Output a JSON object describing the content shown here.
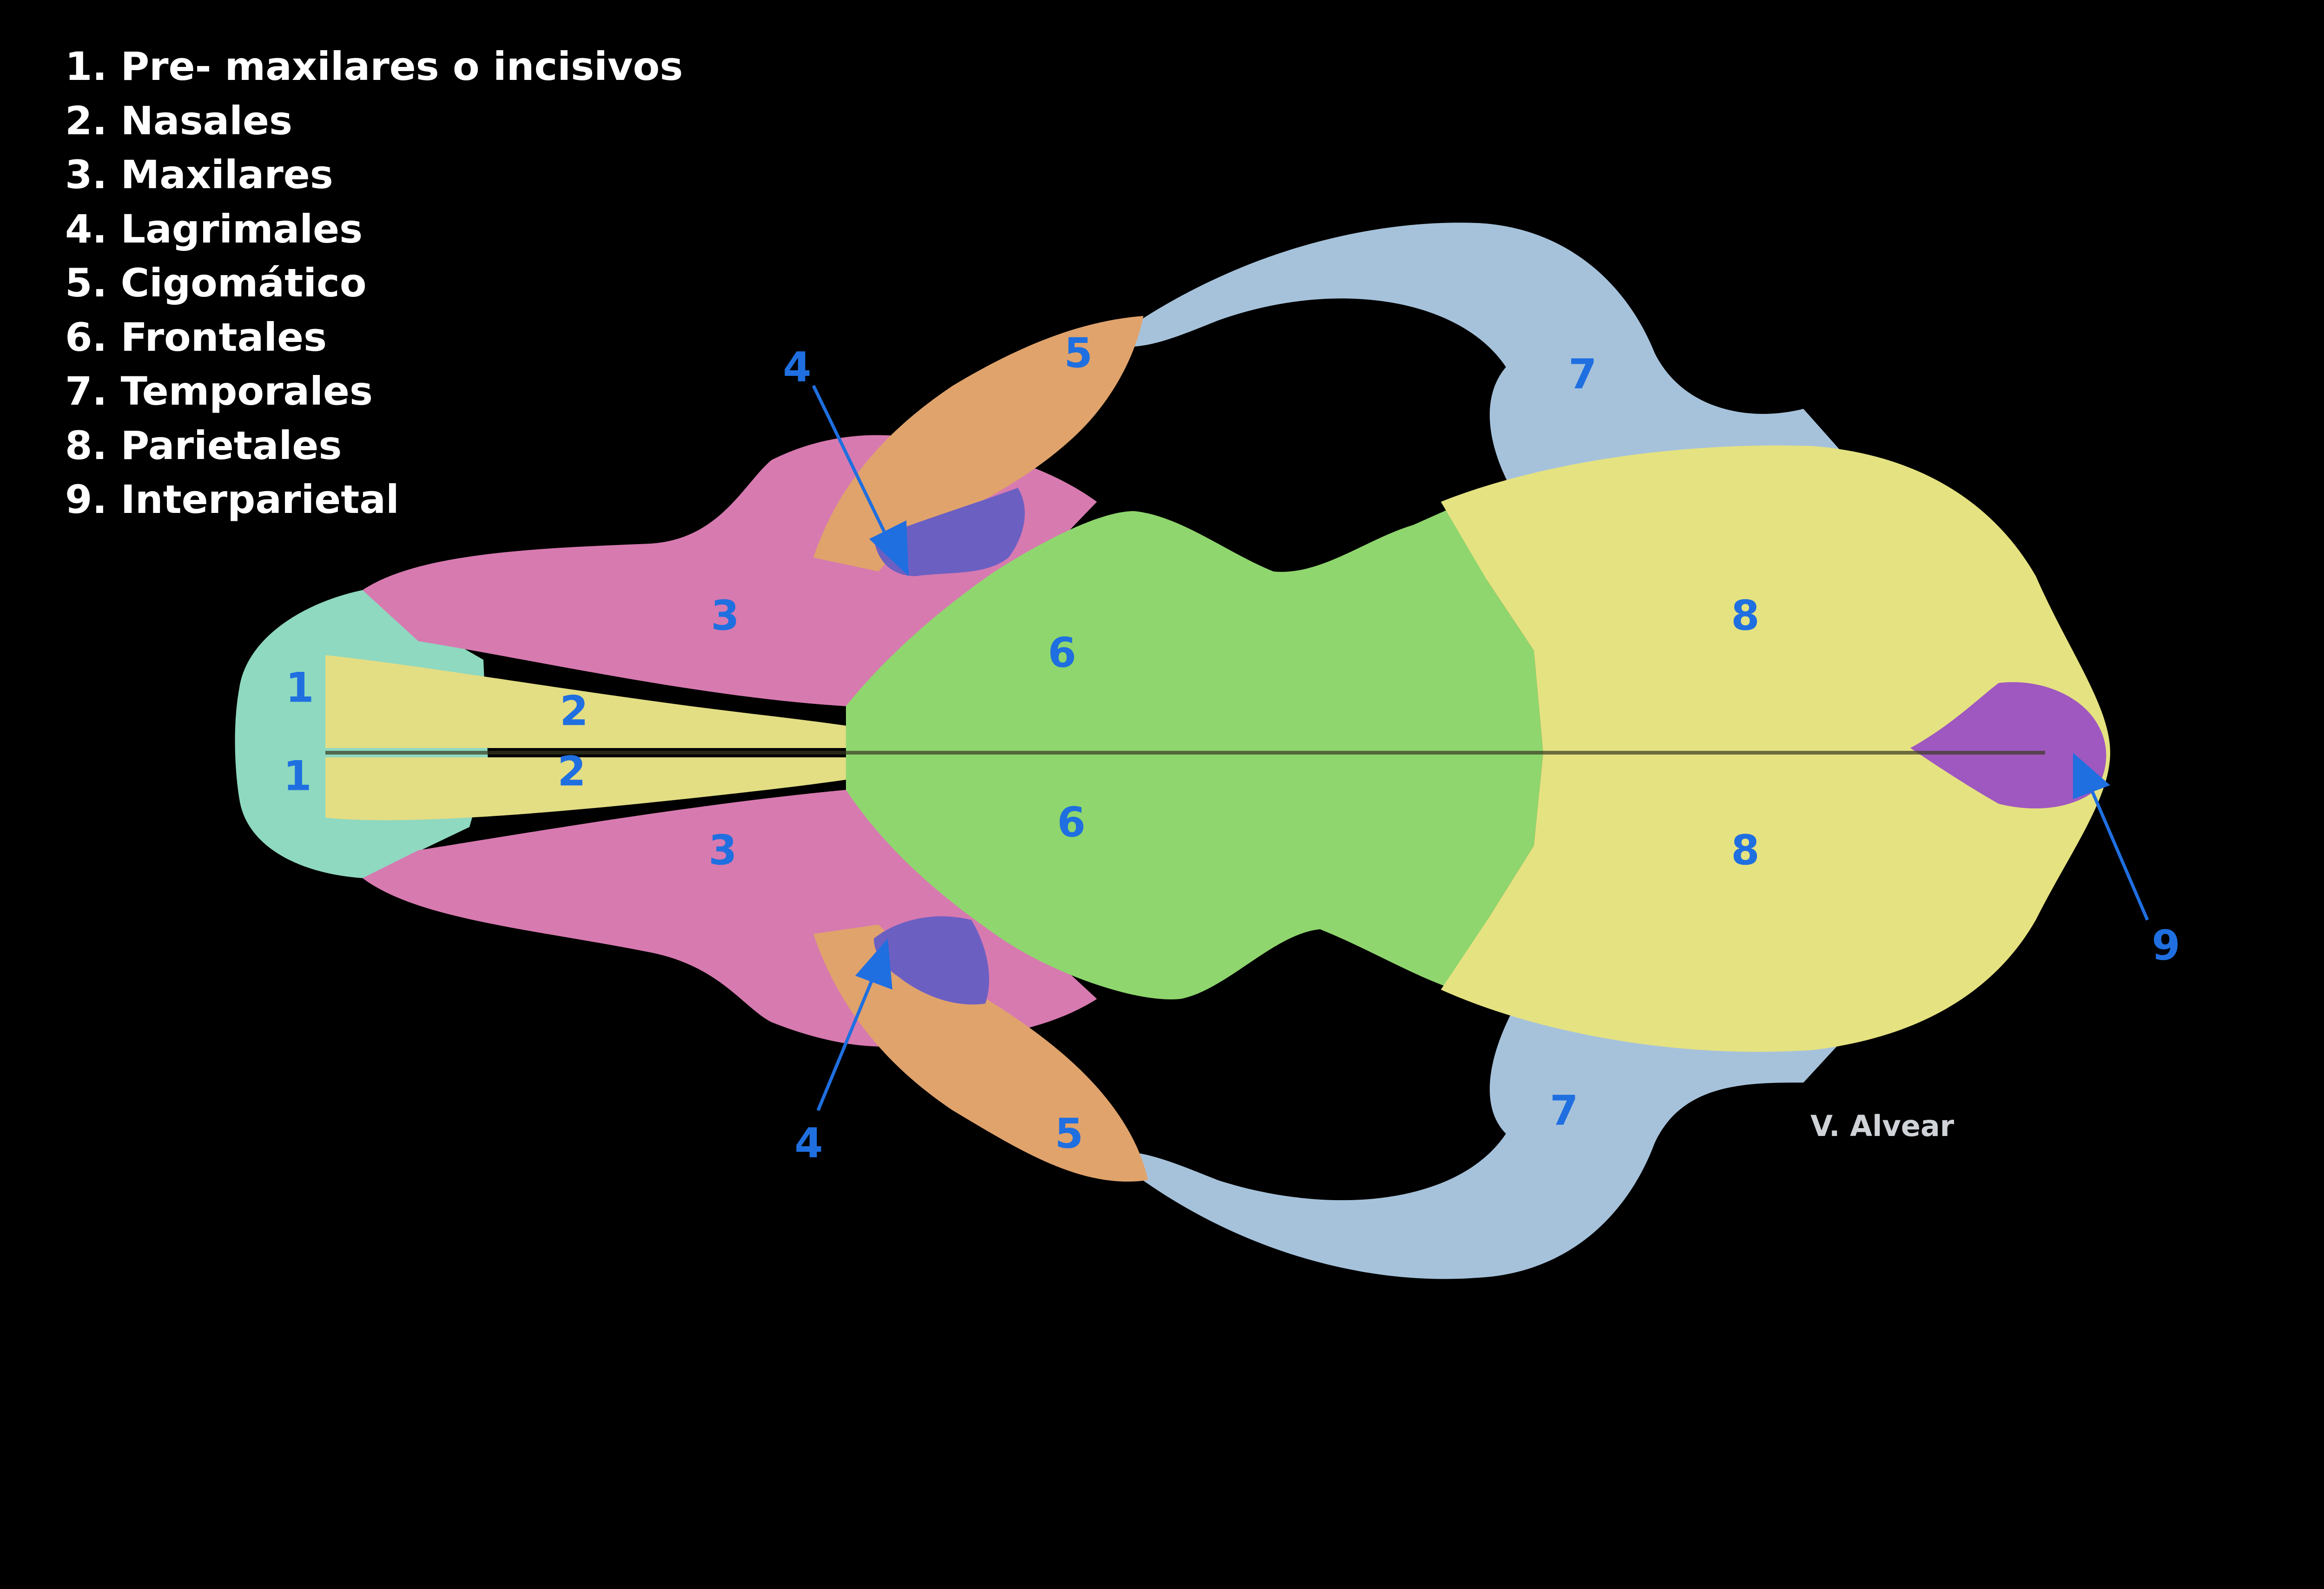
{
  "legend": [
    "1. Pre- maxilares o incisivos",
    "2. Nasales",
    "3. Maxilares",
    "4. Lagrimales",
    "5. Cigomático",
    "6. Frontales",
    "7. Temporales",
    "8. Parietales",
    "9. Interparietal"
  ],
  "labels": {
    "premaxilar": "1",
    "nasal": "2",
    "maxilar": "3",
    "lagrimal": "4",
    "cigomatico": "5",
    "frontal": "6",
    "temporal": "7",
    "parietal": "8",
    "interparietal": "9"
  },
  "credit": "V. Alvear",
  "colors": {
    "background": "#000000",
    "premaxilar": "#8ed9c0",
    "nasal": "#e3dd84",
    "maxilar": "#d77ab0",
    "lagrimal": "#6c5fc2",
    "cigomatico": "#e0a36c",
    "frontal": "#8fd66e",
    "temporal": "#a6c2db",
    "parietal": "#e5e281",
    "interparietal": "#9f58bf",
    "label": "#1f6fe0",
    "arrow": "#1f6fe0"
  }
}
